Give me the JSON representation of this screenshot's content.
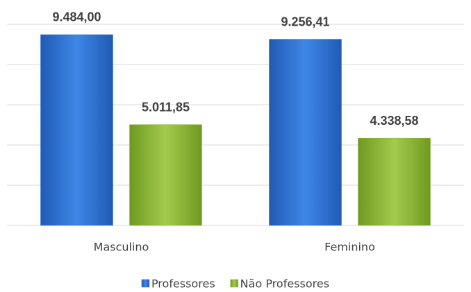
{
  "chart_data": {
    "type": "bar",
    "categories": [
      "Masculino",
      "Feminino"
    ],
    "series": [
      {
        "name": "Professores",
        "color": "#2f70cc",
        "values": [
          9484.0,
          9256.41
        ],
        "value_labels": [
          "9.484,00",
          "9.256,41"
        ]
      },
      {
        "name": "Não Professores",
        "color": "#8ab234",
        "values": [
          5011.85,
          4338.58
        ],
        "value_labels": [
          "5.011,85",
          "4.338,58"
        ]
      }
    ],
    "ylim": [
      0,
      10000
    ],
    "yticks": [
      0,
      2000,
      4000,
      6000,
      8000,
      10000
    ],
    "grid": true,
    "legend": "bottom"
  }
}
